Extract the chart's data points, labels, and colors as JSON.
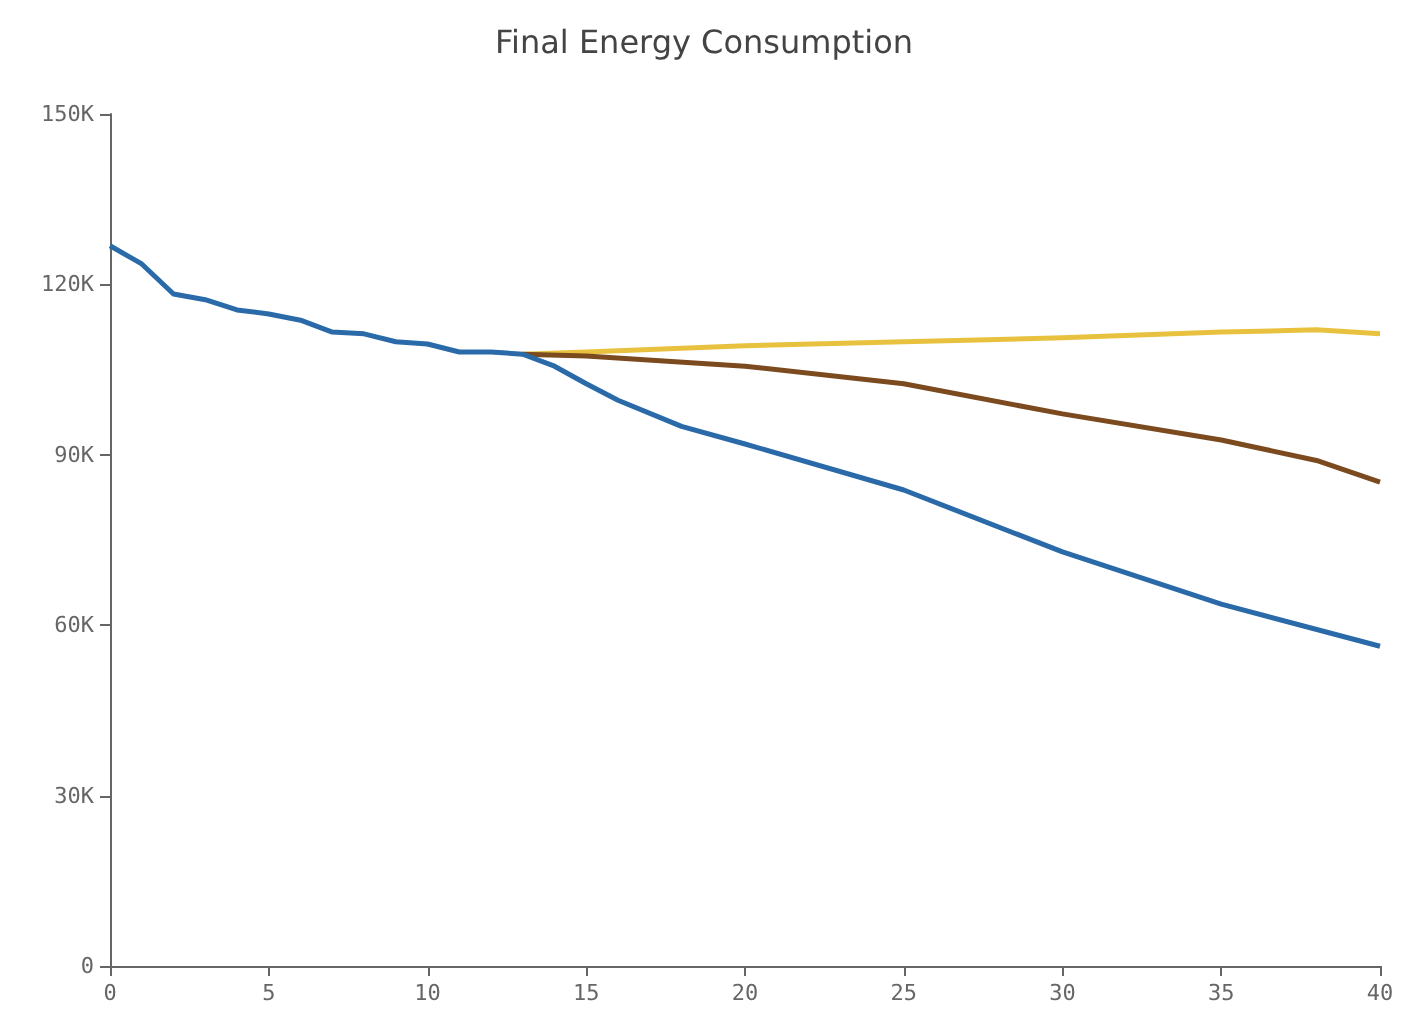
{
  "chart_data": {
    "type": "line",
    "title": "Final Energy Consumption",
    "grid": false,
    "marker": "none",
    "line_style": "solid",
    "xlim": [
      0,
      40
    ],
    "xticks": [
      0,
      5,
      10,
      15,
      20,
      25,
      30,
      35,
      40
    ],
    "ylim": [
      0,
      150000
    ],
    "yticks": [
      0,
      {
        "value": 30000,
        "label": "30K"
      },
      {
        "value": 60000,
        "label": "60K"
      },
      {
        "value": 90000,
        "label": "90K"
      },
      {
        "value": 120000,
        "label": "120K"
      },
      {
        "value": 150000,
        "label": "150K"
      }
    ],
    "series": [
      {
        "color": "#e8c23e",
        "x": [
          13,
          15,
          20,
          25,
          30,
          35,
          38,
          40
        ],
        "values": [
          107700,
          108100,
          109200,
          109900,
          110600,
          111600,
          112000,
          111300
        ]
      },
      {
        "color": "#7b4a1e",
        "x": [
          13,
          15,
          20,
          25,
          30,
          35,
          38,
          40
        ],
        "values": [
          107700,
          107400,
          105600,
          102500,
          97200,
          92600,
          89000,
          85200
        ]
      },
      {
        "color": "#2a6aa8",
        "x": [
          0,
          1,
          2,
          3,
          4,
          5,
          6,
          7,
          8,
          9,
          10,
          11,
          12,
          13,
          14,
          15,
          16,
          18,
          20,
          25,
          30,
          35,
          40
        ],
        "values": [
          126800,
          123600,
          118300,
          117300,
          115500,
          114800,
          113700,
          111600,
          111300,
          109900,
          109500,
          108100,
          108100,
          107700,
          105600,
          102500,
          99600,
          95000,
          91900,
          83800,
          72900,
          63700,
          56300
        ]
      }
    ]
  }
}
